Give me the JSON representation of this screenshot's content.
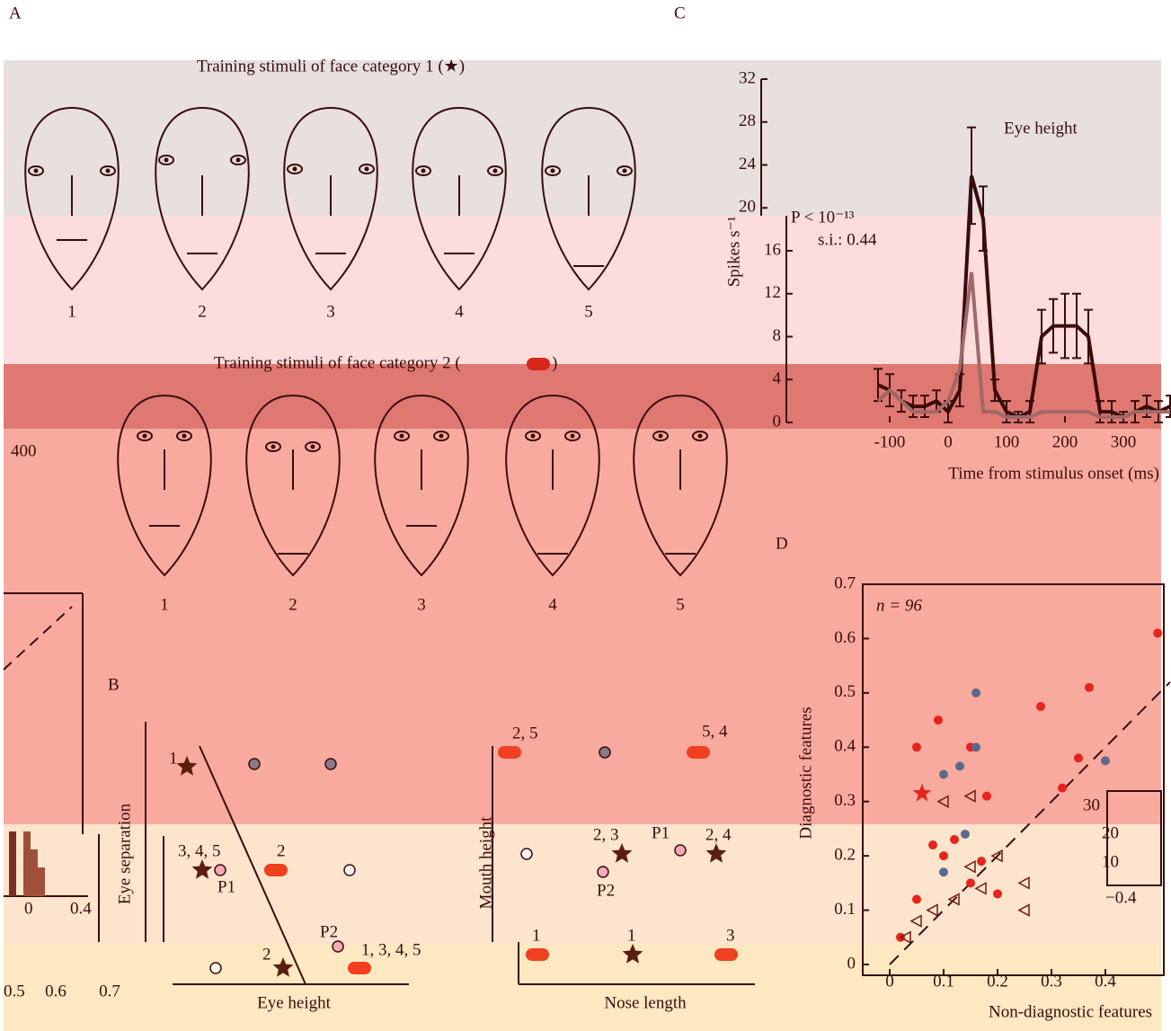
{
  "panel_labels": [
    "A",
    "B",
    "C",
    "D"
  ],
  "panel_a": {
    "title_1": "Training stimuli of face category 1 (★)",
    "title_2": "Training stimuli of face category 2 (",
    "title_2_end": ")",
    "face_labels": [
      "1",
      "2",
      "3",
      "4",
      "5"
    ]
  },
  "panel_b": {
    "left": {
      "x_label": "Eye height",
      "y_label": "Eye separation",
      "point_labels": [
        "1",
        "3, 4, 5",
        "P1",
        "2",
        "P2",
        "2",
        "1, 3, 4, 5"
      ]
    },
    "right": {
      "x_label": "Nose length",
      "y_label": "Mouth height",
      "point_labels": [
        "2, 5",
        "5, 4",
        "2, 3",
        "P1",
        "2, 4",
        "P2",
        "1",
        "1",
        "3"
      ]
    }
  },
  "panel_c": {
    "type": "line",
    "annotation": "Eye height",
    "p_value": "P < 10⁻¹³",
    "si": "s.i.: 0.44",
    "y_label": "Spikes s⁻¹",
    "x_label": "Time from stimulus onset (ms)",
    "x": [
      -120,
      -100,
      -80,
      -60,
      -40,
      -20,
      0,
      20,
      40,
      60,
      80,
      100,
      120,
      140,
      160,
      180,
      200,
      220,
      240,
      260,
      280,
      300,
      320,
      340,
      360,
      380
    ],
    "series": [
      {
        "color": "#3a0c0c",
        "values": [
          3.5,
          3,
          2,
          1.5,
          1.5,
          2,
          1,
          3,
          23,
          19,
          3,
          1,
          0.5,
          1,
          8,
          9,
          9,
          9,
          8,
          1,
          1,
          0.5,
          1,
          1.5,
          1,
          1.5
        ],
        "errors": [
          1.5,
          1.5,
          1,
          1,
          1,
          1,
          1,
          1.5,
          4.5,
          3,
          1,
          1,
          0.5,
          1,
          2.5,
          2.5,
          3,
          3,
          2.5,
          1,
          1,
          0.5,
          1,
          1,
          1,
          1
        ]
      },
      {
        "color": "#a06868",
        "values": [
          2,
          3,
          2,
          1,
          1,
          1,
          2,
          5,
          14,
          1,
          1,
          0.5,
          0.5,
          0.5,
          1,
          1,
          1,
          1,
          1,
          0.5,
          0.5,
          0.5,
          1,
          1,
          1,
          1
        ]
      }
    ],
    "xlim": [
      -320,
      380
    ],
    "xticks": [
      -100,
      0,
      100,
      200,
      300
    ],
    "ylim": [
      0,
      32
    ],
    "yticks": [
      0,
      4,
      8,
      12,
      16,
      20,
      24,
      28,
      32
    ]
  },
  "panel_d": {
    "type": "scatter",
    "annotation": "n = 96",
    "x_label": "Non-diagnostic features",
    "y_label": "Diagnostic features",
    "xlim": [
      -0.05,
      0.52
    ],
    "xticks": [
      0,
      0.1,
      0.2,
      0.3,
      0.4
    ],
    "ylim": [
      0,
      0.7
    ],
    "yticks": [
      0,
      0.1,
      0.2,
      0.3,
      0.4,
      0.5,
      0.6,
      0.7
    ],
    "series": [
      {
        "marker": "dot",
        "color": "#e8231c",
        "x": [
          0.497,
          0.37,
          0.28,
          0.09,
          0.05,
          0.15,
          0.35,
          0.32,
          0.18,
          0.1,
          0.05,
          0.15,
          0.2,
          0.02,
          0.08,
          0.17,
          0.12
        ],
        "values": [
          0.61,
          0.51,
          0.475,
          0.45,
          0.4,
          0.4,
          0.38,
          0.325,
          0.31,
          0.2,
          0.12,
          0.15,
          0.13,
          0.05,
          0.22,
          0.19,
          0.23
        ]
      },
      {
        "marker": "dot",
        "color": "#5a6a8c",
        "x": [
          0.16,
          0.13,
          0.1,
          0.4,
          0.16,
          0.1,
          0.14
        ],
        "values": [
          0.5,
          0.365,
          0.35,
          0.375,
          0.4,
          0.17,
          0.24
        ]
      },
      {
        "marker": "triangle",
        "color": "#6a1e10",
        "x": [
          0.1,
          0.15,
          0.25,
          0.2,
          0.08,
          0.05,
          0.12,
          0.03,
          0.15,
          0.17,
          0.25
        ],
        "values": [
          0.3,
          0.31,
          0.15,
          0.2,
          0.1,
          0.08,
          0.12,
          0.05,
          0.18,
          0.14,
          0.1
        ]
      },
      {
        "marker": "star",
        "color": "#e8231c",
        "x": [
          0.06
        ],
        "values": [
          0.315
        ]
      }
    ],
    "inset_labels": [
      "30",
      "20",
      "10",
      "−0.4"
    ]
  },
  "fragments": [
    "400",
    "0",
    "0.4",
    "0.5",
    "0.6",
    "0.7"
  ]
}
